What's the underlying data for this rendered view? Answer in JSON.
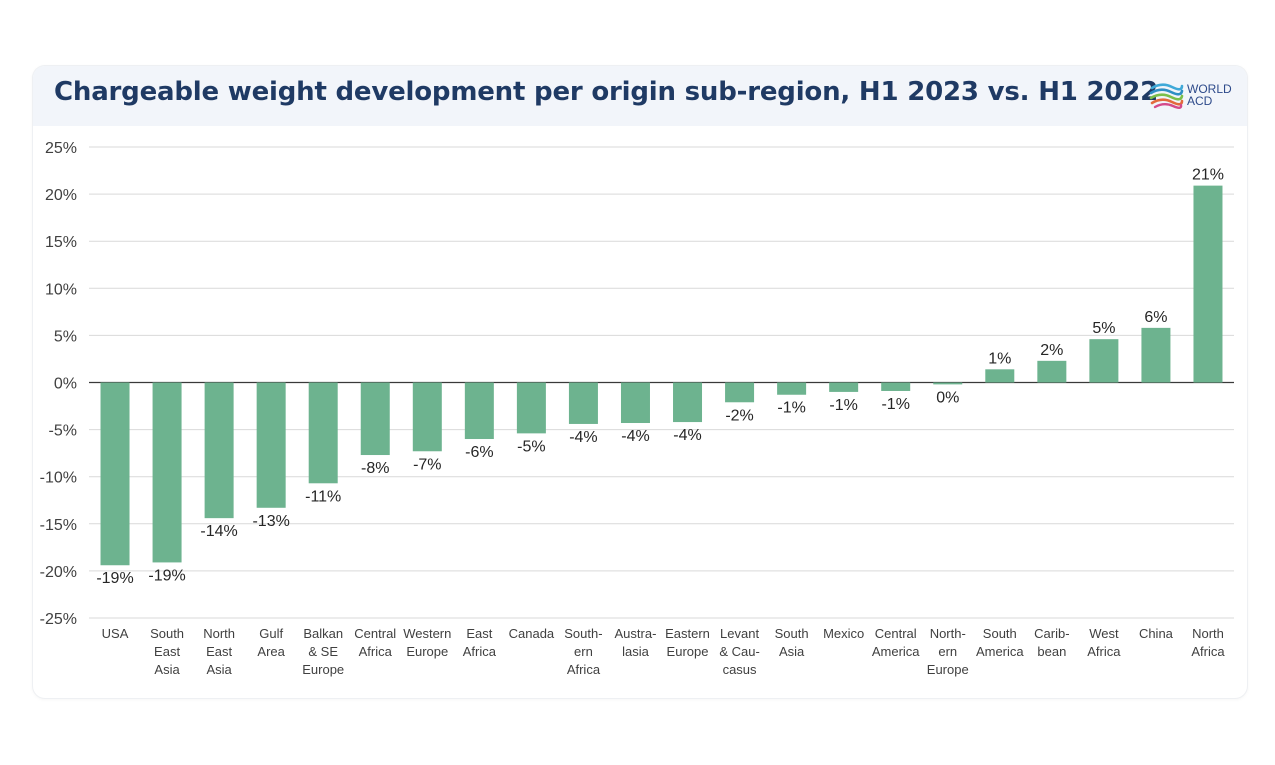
{
  "header": {
    "title": "Chargeable weight development per origin sub-region, H1 2023 vs. H1 2022",
    "logo_line1": "WORLD",
    "logo_line2": "ACD",
    "logo_icon": "wave-globe-icon"
  },
  "colors": {
    "bar": "#6db38f",
    "title": "#1f3a64",
    "header_bg": "#f2f5fa",
    "grid": "#d9d9d9",
    "axis_text": "#404040"
  },
  "chart_data": {
    "type": "bar",
    "title": "Chargeable weight development per origin sub-region, H1 2023 vs. H1 2022",
    "xlabel": "",
    "ylabel": "",
    "ylim": [
      -25,
      25
    ],
    "yticks": [
      25,
      20,
      15,
      10,
      5,
      0,
      -5,
      -10,
      -15,
      -20,
      -25
    ],
    "ytick_labels": [
      "25%",
      "20%",
      "15%",
      "10%",
      "5%",
      "0%",
      "-5%",
      "-10%",
      "-15%",
      "-20%",
      "-25%"
    ],
    "grid": true,
    "legend": "none",
    "categories": [
      [
        "USA"
      ],
      [
        "South",
        "East",
        "Asia"
      ],
      [
        "North",
        "East",
        "Asia"
      ],
      [
        "Gulf",
        "Area"
      ],
      [
        "Balkan",
        "& SE",
        "Europe"
      ],
      [
        "Central",
        "Africa"
      ],
      [
        "Western",
        "Europe"
      ],
      [
        "East",
        "Africa"
      ],
      [
        "Canada"
      ],
      [
        "South-",
        "ern",
        "Africa"
      ],
      [
        "Austra-",
        "lasia"
      ],
      [
        "Eastern",
        "Europe"
      ],
      [
        "Levant",
        "& Cau-",
        "casus"
      ],
      [
        "South",
        "Asia"
      ],
      [
        "Mexico"
      ],
      [
        "Central",
        "America"
      ],
      [
        "North-",
        "ern",
        "Europe"
      ],
      [
        "South",
        "America"
      ],
      [
        "Carib-",
        "bean"
      ],
      [
        "West",
        "Africa"
      ],
      [
        "China"
      ],
      [
        "North",
        "Africa"
      ]
    ],
    "values": [
      -19.4,
      -19.1,
      -14.4,
      -13.3,
      -10.7,
      -7.7,
      -7.3,
      -6.0,
      -5.4,
      -4.4,
      -4.3,
      -4.2,
      -2.1,
      -1.3,
      -1.0,
      -0.9,
      -0.2,
      1.4,
      2.3,
      4.6,
      5.8,
      20.9
    ],
    "data_labels": [
      "-19%",
      "-19%",
      "-14%",
      "-13%",
      "-11%",
      "-8%",
      "-7%",
      "-6%",
      "-5%",
      "-4%",
      "-4%",
      "-4%",
      "-2%",
      "-1%",
      "-1%",
      "-1%",
      "0%",
      "1%",
      "2%",
      "5%",
      "6%",
      "21%"
    ]
  }
}
